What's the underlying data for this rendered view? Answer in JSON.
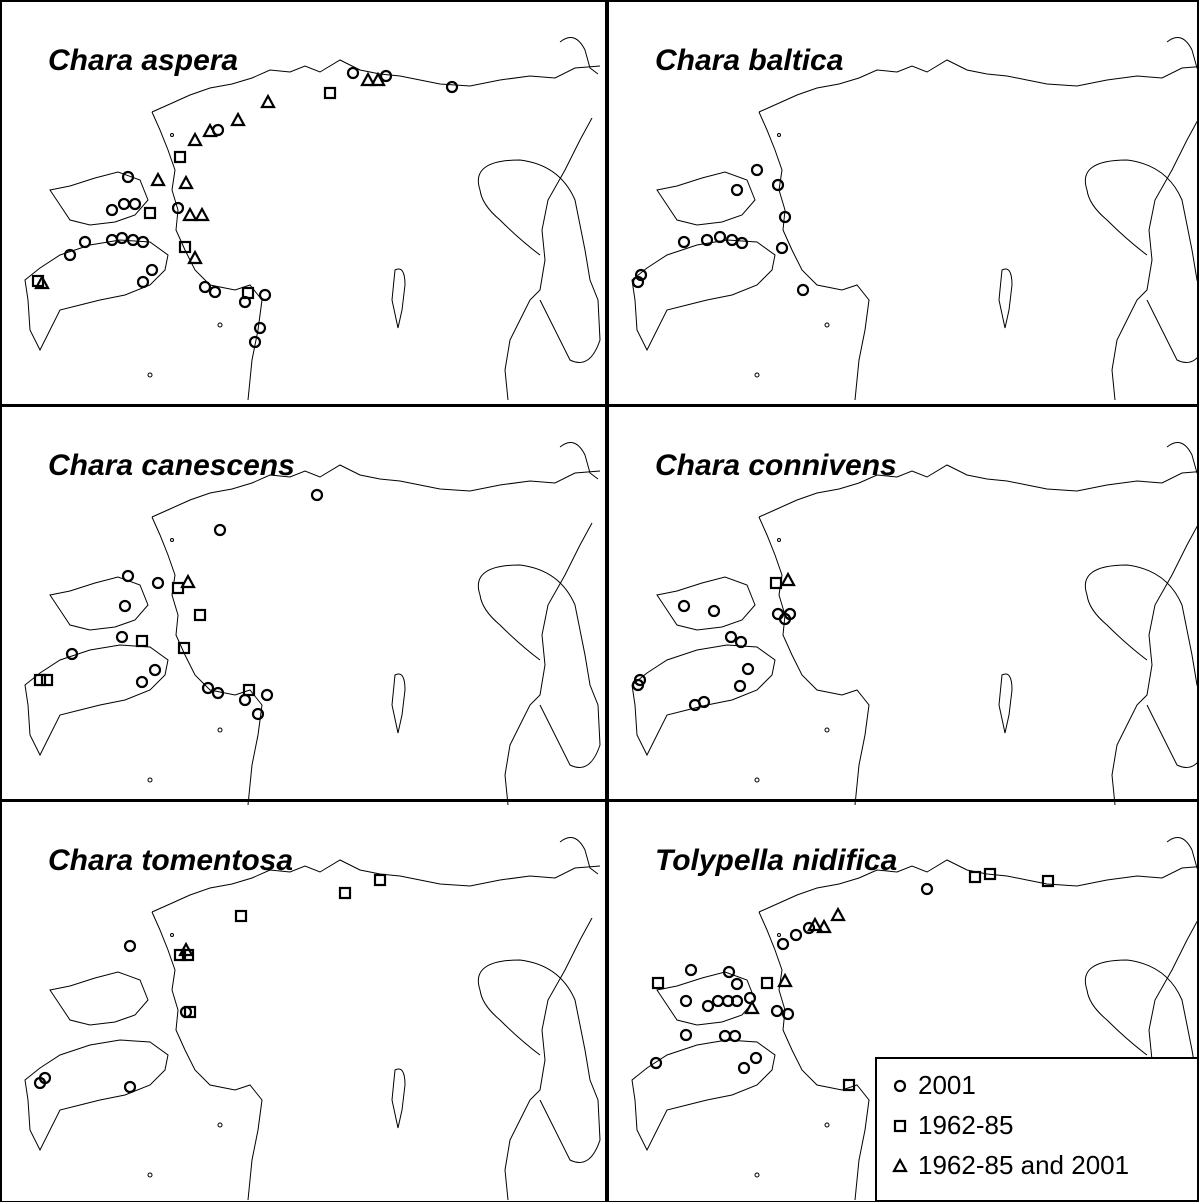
{
  "panels": [
    {
      "title": "Chara aspera"
    },
    {
      "title": "Chara baltica"
    },
    {
      "title": "Chara canescens"
    },
    {
      "title": "Chara connivens"
    },
    {
      "title": "Chara tomentosa"
    },
    {
      "title": "Tolypella nidifica"
    }
  ],
  "legend": [
    {
      "label": "2001"
    },
    {
      "label": "1962-85"
    },
    {
      "label": "1962-85 and 2001"
    }
  ]
}
